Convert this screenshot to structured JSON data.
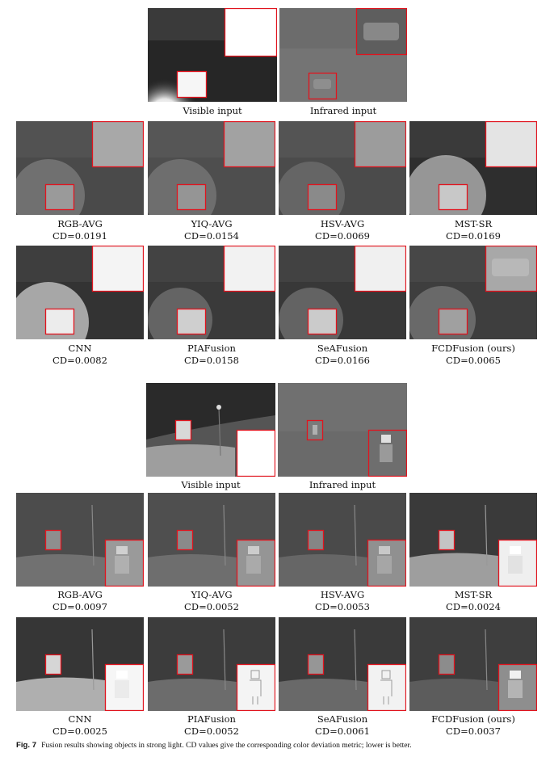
{
  "figure_label": "Fig. 7",
  "caption": "Fusion results showing objects in strong light. CD values give the corresponding color deviation metric; lower is better.",
  "scene1": {
    "inputs": [
      {
        "label": "Visible input"
      },
      {
        "label": "Infrared input"
      }
    ],
    "results": [
      {
        "method": "RGB-AVG",
        "cd": "CD=0.0191"
      },
      {
        "method": "YIQ-AVG",
        "cd": "CD=0.0154"
      },
      {
        "method": "HSV-AVG",
        "cd": "CD=0.0069"
      },
      {
        "method": "MST-SR",
        "cd": "CD=0.0169"
      },
      {
        "method": "CNN",
        "cd": "CD=0.0082"
      },
      {
        "method": "PIAFusion",
        "cd": "CD=0.0158"
      },
      {
        "method": "SeAFusion",
        "cd": "CD=0.0166"
      },
      {
        "method": "FCDFusion (ours)",
        "cd": "CD=0.0065"
      }
    ]
  },
  "scene2": {
    "inputs": [
      {
        "label": "Visible input"
      },
      {
        "label": "Infrared input"
      }
    ],
    "results": [
      {
        "method": "RGB-AVG",
        "cd": "CD=0.0097"
      },
      {
        "method": "YIQ-AVG",
        "cd": "CD=0.0052"
      },
      {
        "method": "HSV-AVG",
        "cd": "CD=0.0053"
      },
      {
        "method": "MST-SR",
        "cd": "CD=0.0024"
      },
      {
        "method": "CNN",
        "cd": "CD=0.0025"
      },
      {
        "method": "PIAFusion",
        "cd": "CD=0.0052"
      },
      {
        "method": "SeAFusion",
        "cd": "CD=0.0061"
      },
      {
        "method": "FCDFusion (ours)",
        "cd": "CD=0.0037"
      }
    ]
  },
  "colors": {
    "box": "#e0141e",
    "dark": "#2a2a2a",
    "ir": "#6e6e6e"
  }
}
